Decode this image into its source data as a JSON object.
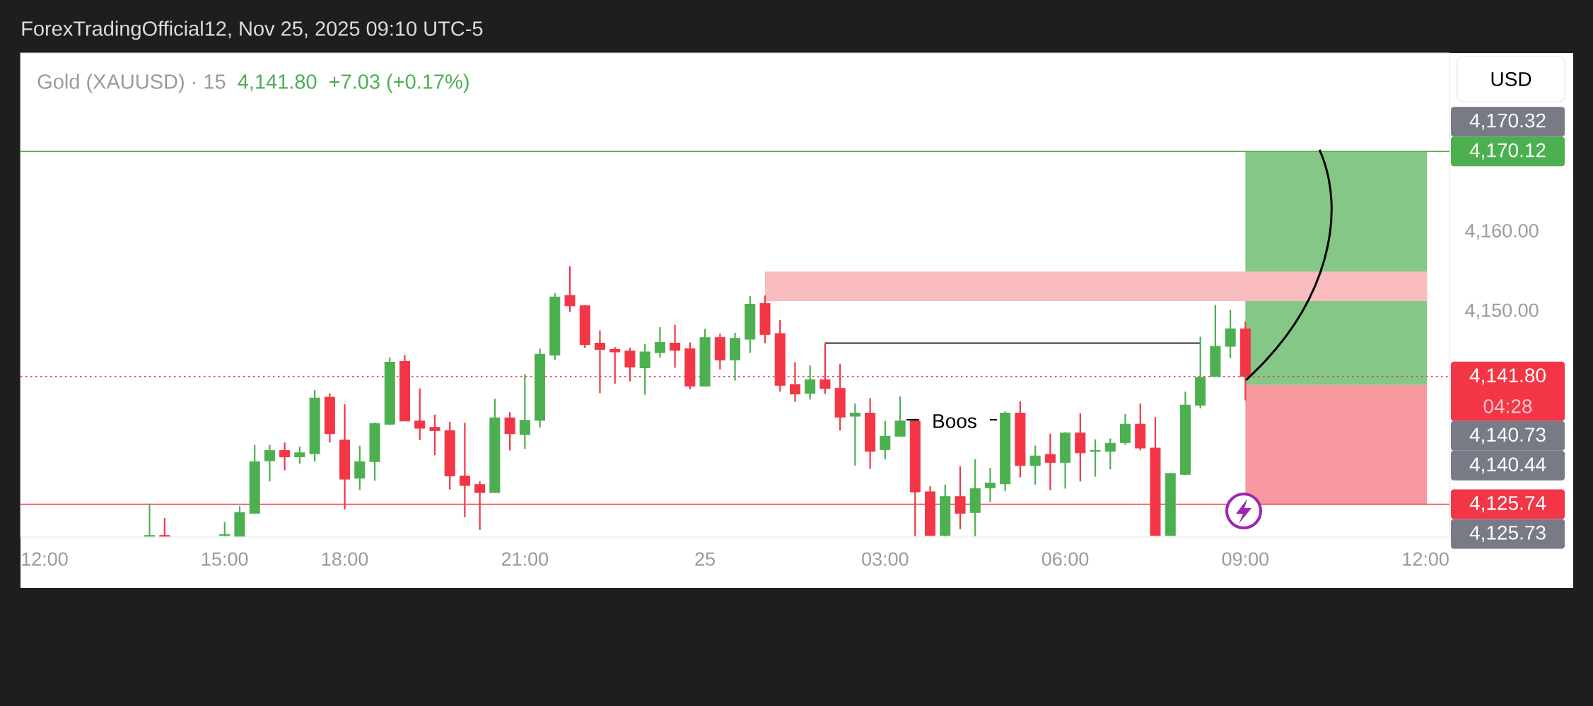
{
  "chart_data": {
    "type": "candlestick",
    "title": "ForexTradingOfficial12, Nov 25, 2025 09:10 UTC-5",
    "subtitle": "Gold (XAUUSD) · 15",
    "categories": [
      "12:00",
      null,
      null,
      null,
      null,
      null,
      null,
      null,
      null,
      null,
      null,
      null,
      "15:00",
      null,
      null,
      null,
      null,
      null,
      null,
      null,
      "18:00",
      null,
      null,
      null,
      null,
      null,
      null,
      null,
      null,
      null,
      null,
      null,
      "21:00",
      null,
      null,
      null,
      null,
      null,
      null,
      null,
      null,
      null,
      null,
      null,
      "25",
      null,
      null,
      null,
      null,
      null,
      null,
      null,
      null,
      null,
      null,
      null,
      "03:00",
      null,
      null,
      null,
      null,
      null,
      null,
      null,
      null,
      null,
      null,
      null,
      "06:00",
      null,
      null,
      null,
      null,
      null,
      null,
      null,
      null,
      null,
      null,
      null,
      "09:00",
      null,
      null,
      null,
      null,
      null,
      null,
      null,
      null,
      null,
      null,
      null,
      "12:00"
    ],
    "ohlc": [
      null,
      null,
      null,
      null,
      null,
      null,
      null,
      [
        4121.7,
        4125.8,
        4121.7,
        4121.8
      ],
      [
        4121.8,
        4124.0,
        4121.7,
        4121.7
      ],
      null,
      null,
      null,
      [
        4121.8,
        4123.5,
        4121.7,
        4121.9
      ],
      [
        4121.7,
        4125.5,
        4121.7,
        4124.7
      ],
      [
        4124.6,
        4133.2,
        4124.6,
        4131.1
      ],
      [
        4131.2,
        4133.2,
        4128.6,
        4132.5
      ],
      [
        4132.5,
        4133.5,
        4130.0,
        4131.7
      ],
      [
        4131.7,
        4133.0,
        4130.8,
        4132.2
      ],
      [
        4132.1,
        4140.1,
        4131.1,
        4139.1
      ],
      [
        4139.2,
        4139.7,
        4133.5,
        4134.6
      ],
      [
        4133.8,
        4138.3,
        4125.1,
        4128.9
      ],
      [
        4129.0,
        4133.1,
        4127.5,
        4131.1
      ],
      [
        4131.1,
        4136.0,
        4128.7,
        4135.9
      ],
      [
        4135.8,
        4144.2,
        4135.7,
        4143.6
      ],
      [
        4143.7,
        4144.5,
        4136.2,
        4136.2
      ],
      [
        4136.2,
        4140.3,
        4133.8,
        4135.3
      ],
      [
        4135.4,
        4137.0,
        4131.9,
        4135.0
      ],
      [
        4135.0,
        4136.1,
        4127.6,
        4129.3
      ],
      [
        4129.3,
        4136.0,
        4124.1,
        4128.1
      ],
      [
        4128.2,
        4128.6,
        4122.5,
        4127.2
      ],
      [
        4127.2,
        4139.0,
        4127.2,
        4136.6
      ],
      [
        4136.6,
        4137.3,
        4132.5,
        4134.6
      ],
      [
        4134.5,
        4142.1,
        4132.7,
        4136.3
      ],
      [
        4136.3,
        4145.3,
        4135.4,
        4144.6
      ],
      [
        4144.5,
        4152.3,
        4143.9,
        4151.8
      ],
      [
        4152.0,
        4155.7,
        4149.9,
        4150.7
      ],
      [
        4150.7,
        4150.8,
        4145.4,
        4145.8
      ],
      [
        4146.0,
        4147.6,
        4139.7,
        4145.2
      ],
      [
        4145.2,
        4145.5,
        4140.9,
        4144.9
      ],
      [
        4145.0,
        4145.4,
        4141.2,
        4143.0
      ],
      [
        4142.9,
        4145.9,
        4139.5,
        4144.9
      ],
      [
        4144.8,
        4148.0,
        4144.2,
        4146.1
      ],
      [
        4146.0,
        4148.3,
        4142.9,
        4145.1
      ],
      [
        4145.3,
        4146.1,
        4140.2,
        4140.6
      ],
      [
        4140.6,
        4147.8,
        4140.6,
        4146.7
      ],
      [
        4146.7,
        4147.2,
        4142.7,
        4143.9
      ],
      [
        4143.9,
        4147.3,
        4141.3,
        4146.6
      ],
      [
        4146.5,
        4151.9,
        4144.8,
        4150.9
      ],
      [
        4151.0,
        4152.0,
        4146.0,
        4147.1
      ],
      [
        4147.2,
        4148.9,
        4139.9,
        4140.7
      ],
      [
        4140.8,
        4143.6,
        4138.6,
        4139.6
      ],
      [
        4139.7,
        4143.2,
        4138.9,
        4141.4
      ],
      [
        4141.4,
        4146.0,
        4139.6,
        4140.3
      ],
      [
        4140.3,
        4143.4,
        4135.0,
        4136.7
      ],
      [
        4136.8,
        4138.4,
        4130.6,
        4137.2
      ],
      [
        4137.2,
        4139.1,
        4130.2,
        4132.4
      ],
      [
        4132.6,
        4136.2,
        4131.4,
        4134.3
      ],
      [
        4134.3,
        4139.3,
        4134.3,
        4136.2
      ],
      [
        4136.2,
        4136.5,
        4121.7,
        4127.3
      ],
      [
        4127.3,
        4128.0,
        4121.7,
        4121.8
      ],
      [
        4121.8,
        4128.2,
        4121.7,
        4126.7
      ],
      [
        4126.7,
        4130.5,
        4122.6,
        4124.6
      ],
      [
        4124.7,
        4131.4,
        4121.7,
        4127.7
      ],
      [
        4127.8,
        4130.3,
        4126.0,
        4128.4
      ],
      [
        4128.3,
        4137.4,
        4127.4,
        4137.2
      ],
      [
        4137.2,
        4138.7,
        4129.1,
        4130.6
      ],
      [
        4130.6,
        4133.1,
        4128.2,
        4131.8
      ],
      [
        4132.0,
        4134.6,
        4127.5,
        4131.0
      ],
      [
        4131.0,
        4134.8,
        4127.7,
        4134.7
      ],
      [
        4134.7,
        4137.2,
        4128.6,
        4132.2
      ],
      [
        4132.4,
        4133.9,
        4129.2,
        4132.5
      ],
      [
        4132.4,
        4134.0,
        4130.1,
        4133.4
      ],
      [
        4133.5,
        4137.1,
        4133.2,
        4135.8
      ],
      [
        4135.8,
        4138.4,
        4132.5,
        4132.8
      ],
      [
        4132.8,
        4136.7,
        4121.7,
        4121.8
      ],
      [
        4121.8,
        4129.7,
        4121.7,
        4129.6
      ],
      [
        4129.5,
        4139.9,
        4129.4,
        4138.2
      ],
      [
        4138.2,
        4146.8,
        4137.8,
        4141.7
      ],
      [
        4141.8,
        4150.8,
        4141.8,
        4145.6
      ],
      [
        4145.6,
        4150.2,
        4144.1,
        4147.8
      ],
      [
        4147.8,
        4148.7,
        4138.8,
        4141.8
      ],
      null,
      null,
      null,
      null,
      null,
      null,
      null,
      null,
      null,
      null,
      null,
      null
    ],
    "series": [
      {
        "type": "line",
        "color": "#333333",
        "values": [
          null,
          null,
          null,
          null,
          null,
          null,
          null,
          null,
          null,
          null,
          null,
          null,
          null,
          null,
          null,
          null,
          null,
          null,
          null,
          null,
          null,
          null,
          null,
          null,
          null,
          null,
          null,
          null,
          null,
          null,
          null,
          null,
          null,
          null,
          null,
          null,
          null,
          null,
          null,
          null,
          null,
          null,
          null,
          null,
          null,
          null,
          null,
          null,
          null,
          null,
          null,
          null,
          4146.0,
          4146.0,
          4146.0,
          4146.0,
          4146.0,
          4146.0,
          4146.0,
          4146.0,
          4146.0,
          4146.0,
          4146.0,
          4146.0,
          4146.0,
          4146.0,
          4146.0,
          4146.0,
          4146.0,
          4146.0,
          4146.0,
          4146.0,
          4146.0,
          4146.0,
          4146.0,
          4146.0,
          4146.0,
          4146.0,
          null,
          null,
          null,
          null,
          null,
          null,
          null,
          null,
          null,
          null,
          null,
          null,
          null,
          null,
          null
        ]
      }
    ],
    "ylim": [
      4121.6,
      4182.5
    ],
    "yticks": [
      {
        "value": 4150,
        "label": "4,150.00"
      },
      {
        "value": 4160,
        "label": "4,160.00"
      }
    ],
    "ref_lines": [
      {
        "axis": "y",
        "value": 4170.12,
        "label": "4,170.12",
        "color": "#4caf50",
        "line_style": "solid"
      },
      {
        "axis": "y",
        "value": 4141.8,
        "label": "4,141.80",
        "color": "#f23645",
        "line_style": "dotted"
      },
      {
        "axis": "y",
        "value": 4125.74,
        "label": "4,125.74",
        "color": "#f23645",
        "line_style": "solid"
      }
    ],
    "bands": [
      {
        "axis": "y",
        "from": 4140.73,
        "to": 4170.12,
        "color": "#84c787"
      },
      {
        "axis": "y",
        "from": 4125.74,
        "to": 4140.73,
        "color": "#f7989e"
      },
      {
        "axis": "y",
        "from": 4151.3,
        "to": 4155.0,
        "color": "#f9bcbf"
      }
    ],
    "annotations": [
      "4,141.80",
      "+7.03 (+0.17%)",
      "USD",
      "04:28",
      "Boos",
      "4,170.32",
      "4,140.73",
      "4,140.44",
      "4,125.73"
    ]
  }
}
